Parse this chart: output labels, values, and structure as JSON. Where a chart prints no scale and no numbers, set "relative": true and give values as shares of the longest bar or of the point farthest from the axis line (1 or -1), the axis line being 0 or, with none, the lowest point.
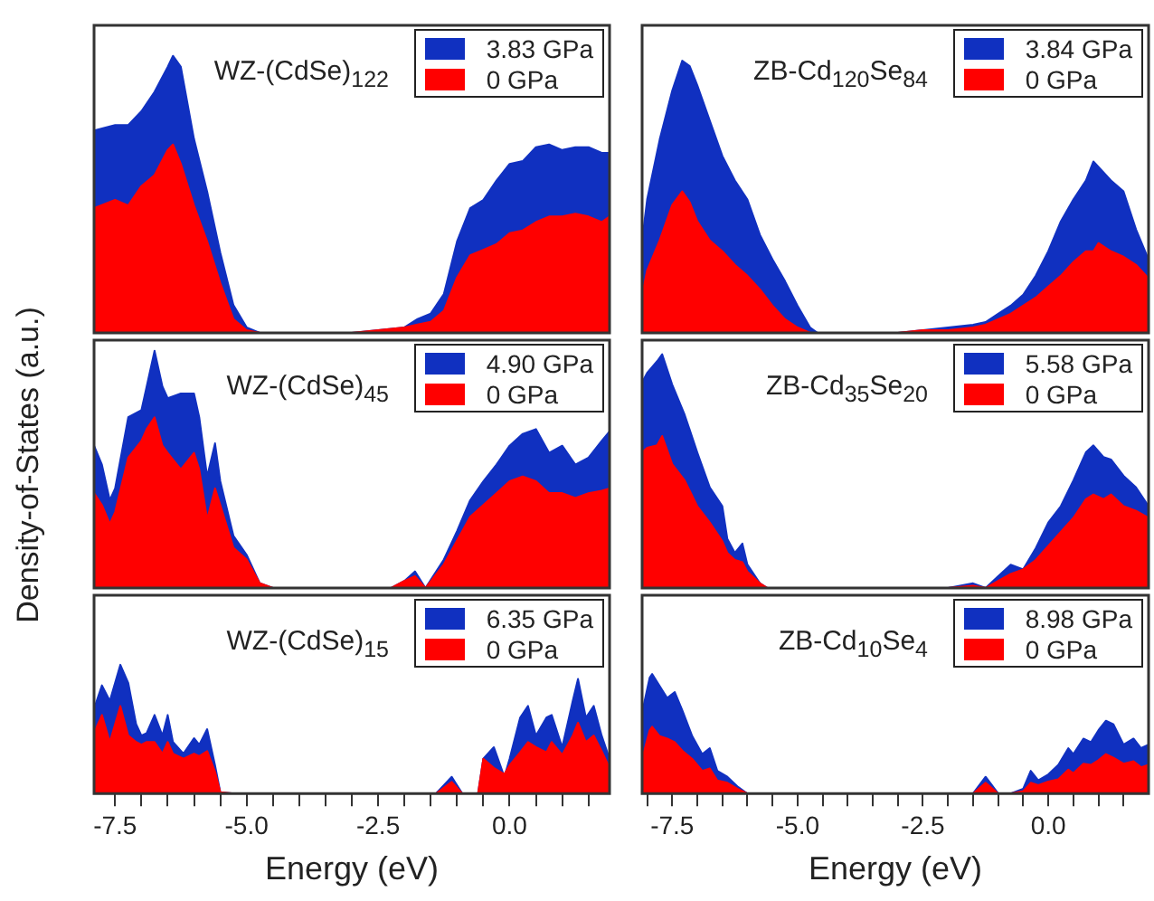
{
  "chart_data": [
    {
      "type": "area",
      "title": "WZ-(CdSe)$_{122}$",
      "relative": true,
      "legend": "top right",
      "marker": "none",
      "tick_labels": false,
      "xlim": [
        -7.9,
        1.9
      ],
      "x": [
        -7.9,
        -7.5,
        -7.25,
        -7,
        -6.75,
        -6.5,
        -6.4,
        -6.25,
        -6,
        -5.75,
        -5.5,
        -5.25,
        -5,
        -4.75,
        -4,
        -3,
        -2.5,
        -2,
        -1.75,
        -1.5,
        -1.25,
        -1,
        -0.75,
        -0.5,
        -0.25,
        0,
        0.25,
        0.5,
        0.75,
        1,
        1.25,
        1.5,
        1.75,
        1.9
      ],
      "series": [
        {
          "name": "3.83 GPa",
          "color": "#1030c0",
          "values": [
            0.73,
            0.75,
            0.75,
            0.8,
            0.87,
            0.96,
            1,
            0.96,
            0.7,
            0.51,
            0.29,
            0.1,
            0.02,
            0,
            0,
            0,
            0.01,
            0.02,
            0.05,
            0.07,
            0.14,
            0.33,
            0.45,
            0.48,
            0.55,
            0.61,
            0.62,
            0.67,
            0.68,
            0.66,
            0.67,
            0.67,
            0.65,
            0.65
          ]
        },
        {
          "name": "0 GPa",
          "color": "#ff0000",
          "values": [
            0.45,
            0.48,
            0.46,
            0.53,
            0.57,
            0.66,
            0.68,
            0.61,
            0.46,
            0.33,
            0.18,
            0.05,
            0.01,
            0,
            0,
            0,
            0.01,
            0.02,
            0.03,
            0.04,
            0.08,
            0.2,
            0.28,
            0.3,
            0.32,
            0.36,
            0.37,
            0.4,
            0.42,
            0.42,
            0.43,
            0.42,
            0.4,
            0.42
          ]
        }
      ]
    },
    {
      "type": "area",
      "title": "ZB-Cd$_{120}$Se$_{84}$",
      "relative": true,
      "legend": "top right",
      "marker": "none",
      "tick_labels": false,
      "xlim": [
        -8.1,
        2
      ],
      "x": [
        -8.1,
        -8,
        -7.75,
        -7.5,
        -7.3,
        -7.15,
        -7,
        -6.75,
        -6.5,
        -6.25,
        -6,
        -5.75,
        -5.5,
        -5.25,
        -5,
        -4.75,
        -4.6,
        -3,
        -2.5,
        -2,
        -1.5,
        -1.25,
        -1,
        -0.75,
        -0.5,
        -0.25,
        0,
        0.25,
        0.5,
        0.75,
        0.9,
        1,
        1.25,
        1.5,
        1.75,
        2
      ],
      "series": [
        {
          "name": "3.84 GPa",
          "color": "#1030c0",
          "values": [
            0.34,
            0.49,
            0.71,
            0.89,
            1,
            0.98,
            0.91,
            0.78,
            0.65,
            0.56,
            0.49,
            0.36,
            0.27,
            0.19,
            0.1,
            0.02,
            0,
            0,
            0.01,
            0.02,
            0.03,
            0.04,
            0.07,
            0.1,
            0.14,
            0.21,
            0.3,
            0.41,
            0.49,
            0.56,
            0.63,
            0.61,
            0.56,
            0.52,
            0.38,
            0.27
          ]
        },
        {
          "name": "0 GPa",
          "color": "#ff0000",
          "values": [
            0.14,
            0.23,
            0.34,
            0.47,
            0.52,
            0.48,
            0.41,
            0.34,
            0.3,
            0.25,
            0.21,
            0.16,
            0.1,
            0.05,
            0.02,
            0,
            0,
            0,
            0.01,
            0.01,
            0.02,
            0.03,
            0.05,
            0.07,
            0.1,
            0.13,
            0.17,
            0.21,
            0.26,
            0.3,
            0.3,
            0.33,
            0.3,
            0.28,
            0.25,
            0.2
          ]
        }
      ]
    },
    {
      "type": "area",
      "title": "WZ-(CdSe)$_{45}$",
      "ylabel": "Density-of-States (a.u.)",
      "relative": true,
      "legend": "top right",
      "marker": "none",
      "tick_labels": false,
      "xlim": [
        -7.9,
        1.9
      ],
      "x": [
        -7.9,
        -7.75,
        -7.6,
        -7.5,
        -7.25,
        -7,
        -6.9,
        -6.75,
        -6.6,
        -6.5,
        -6.25,
        -6,
        -5.9,
        -5.75,
        -5.6,
        -5.5,
        -5.25,
        -5,
        -4.75,
        -4.5,
        -3,
        -2.25,
        -2,
        -1.8,
        -1.6,
        -1.25,
        -1,
        -0.75,
        -0.5,
        -0.25,
        0,
        0.25,
        0.5,
        0.75,
        1,
        1.25,
        1.5,
        1.75,
        1.9
      ],
      "series": [
        {
          "name": "4.90 GPa",
          "color": "#1030c0",
          "values": [
            0.6,
            0.52,
            0.37,
            0.42,
            0.72,
            0.75,
            0.85,
            1,
            0.85,
            0.8,
            0.82,
            0.82,
            0.72,
            0.47,
            0.61,
            0.45,
            0.22,
            0.14,
            0.02,
            0,
            0,
            0,
            0.03,
            0.07,
            0,
            0.12,
            0.24,
            0.37,
            0.45,
            0.52,
            0.6,
            0.65,
            0.67,
            0.57,
            0.6,
            0.52,
            0.55,
            0.62,
            0.66
          ]
        },
        {
          "name": "0 GPa",
          "color": "#ff0000",
          "values": [
            0.4,
            0.35,
            0.27,
            0.32,
            0.55,
            0.62,
            0.67,
            0.72,
            0.6,
            0.57,
            0.5,
            0.57,
            0.5,
            0.29,
            0.42,
            0.35,
            0.17,
            0.12,
            0.02,
            0,
            0,
            0,
            0.03,
            0.05,
            0,
            0.1,
            0.2,
            0.3,
            0.35,
            0.4,
            0.45,
            0.47,
            0.45,
            0.4,
            0.4,
            0.38,
            0.4,
            0.41,
            0.42
          ]
        }
      ]
    },
    {
      "type": "area",
      "title": "ZB-Cd$_{35}$Se$_{20}$",
      "relative": true,
      "legend": "top right",
      "marker": "none",
      "tick_labels": false,
      "xlim": [
        -8.1,
        2
      ],
      "x": [
        -8.1,
        -8,
        -7.8,
        -7.7,
        -7.5,
        -7.25,
        -7,
        -6.75,
        -6.5,
        -6.4,
        -6.25,
        -6.1,
        -6,
        -5.75,
        -5.6,
        -2,
        -1.5,
        -1.25,
        -1,
        -0.75,
        -0.5,
        -0.25,
        0,
        0.25,
        0.5,
        0.75,
        0.9,
        1.1,
        1.25,
        1.5,
        1.75,
        2
      ],
      "series": [
        {
          "name": "5.58 GPa",
          "color": "#1030c0",
          "values": [
            0.88,
            0.92,
            0.97,
            1,
            0.87,
            0.74,
            0.58,
            0.43,
            0.35,
            0.21,
            0.15,
            0.19,
            0.1,
            0.02,
            0,
            0,
            0.02,
            0,
            0.05,
            0.1,
            0.08,
            0.17,
            0.28,
            0.35,
            0.46,
            0.58,
            0.61,
            0.56,
            0.55,
            0.48,
            0.43,
            0.35
          ]
        },
        {
          "name": "0 GPa",
          "color": "#ff0000",
          "values": [
            0.58,
            0.6,
            0.61,
            0.65,
            0.53,
            0.46,
            0.35,
            0.28,
            0.2,
            0.15,
            0.12,
            0.11,
            0.07,
            0.02,
            0,
            0,
            0.01,
            0,
            0.03,
            0.06,
            0.08,
            0.12,
            0.18,
            0.24,
            0.3,
            0.38,
            0.4,
            0.38,
            0.4,
            0.35,
            0.33,
            0.3
          ]
        }
      ]
    },
    {
      "type": "area",
      "title": "WZ-(CdSe)$_{15}$",
      "xlabel": "Energy (eV)",
      "relative": true,
      "legend": "top right",
      "marker": "none",
      "tick_labels": "x",
      "xlim": [
        -7.9,
        1.9
      ],
      "xticks": [
        {
          "value": -7.5,
          "label": "-7.5"
        },
        {
          "value": -7,
          "label": null
        },
        {
          "value": -6.5,
          "label": null
        },
        {
          "value": -6,
          "label": null
        },
        {
          "value": -5.5,
          "label": null
        },
        {
          "value": -5,
          "label": "-5.0"
        },
        {
          "value": -4.5,
          "label": null
        },
        {
          "value": -4,
          "label": null
        },
        {
          "value": -3.5,
          "label": null
        },
        {
          "value": -3,
          "label": null
        },
        {
          "value": -2.5,
          "label": "-2.5"
        },
        {
          "value": -2,
          "label": null
        },
        {
          "value": -1.5,
          "label": null
        },
        {
          "value": -1,
          "label": null
        },
        {
          "value": -0.5,
          "label": null
        },
        {
          "value": 0,
          "label": "0.0"
        },
        {
          "value": 0.5,
          "label": null
        },
        {
          "value": 1,
          "label": null
        },
        {
          "value": 1.5,
          "label": null
        }
      ],
      "x": [
        -7.9,
        -7.75,
        -7.6,
        -7.4,
        -7.25,
        -7.1,
        -7,
        -6.9,
        -6.75,
        -6.6,
        -6.5,
        -6.4,
        -6.2,
        -6,
        -5.9,
        -5.75,
        -5.6,
        -5.5,
        -5.25,
        -1.4,
        -1.1,
        -0.9,
        -0.6,
        -0.5,
        -0.3,
        -0.1,
        0,
        0.2,
        0.35,
        0.5,
        0.7,
        0.8,
        1,
        1.2,
        1.3,
        1.45,
        1.6,
        1.75,
        1.9
      ],
      "series": [
        {
          "name": "6.35 GPa",
          "color": "#1030c0",
          "values": [
            0.66,
            0.84,
            0.72,
            1,
            0.86,
            0.54,
            0.45,
            0.47,
            0.61,
            0.45,
            0.61,
            0.4,
            0.31,
            0.43,
            0.38,
            0.5,
            0.22,
            0.01,
            0,
            0,
            0.13,
            0,
            0,
            0.27,
            0.36,
            0.13,
            0.27,
            0.59,
            0.68,
            0.45,
            0.59,
            0.61,
            0.36,
            0.72,
            0.89,
            0.59,
            0.68,
            0.45,
            0.27
          ]
        },
        {
          "name": "0 GPa",
          "color": "#ff0000",
          "values": [
            0.47,
            0.61,
            0.4,
            0.68,
            0.45,
            0.4,
            0.38,
            0.4,
            0.4,
            0.31,
            0.4,
            0.31,
            0.27,
            0.31,
            0.29,
            0.33,
            0.17,
            0.01,
            0,
            0,
            0.09,
            0,
            0,
            0.27,
            0.2,
            0.15,
            0.22,
            0.32,
            0.4,
            0.36,
            0.32,
            0.4,
            0.3,
            0.45,
            0.55,
            0.4,
            0.45,
            0.33,
            0.2
          ]
        }
      ]
    },
    {
      "type": "area",
      "title": "ZB-Cd$_{10}$Se$_{4}$",
      "xlabel": "Energy (eV)",
      "relative": true,
      "legend": "top right",
      "marker": "none",
      "tick_labels": "x",
      "xlim": [
        -8.1,
        2
      ],
      "xticks": [
        {
          "value": -8,
          "label": null
        },
        {
          "value": -7.5,
          "label": "-7.5"
        },
        {
          "value": -7,
          "label": null
        },
        {
          "value": -6.5,
          "label": null
        },
        {
          "value": -6,
          "label": null
        },
        {
          "value": -5.5,
          "label": null
        },
        {
          "value": -5,
          "label": "-5.0"
        },
        {
          "value": -4.5,
          "label": null
        },
        {
          "value": -4,
          "label": null
        },
        {
          "value": -3.5,
          "label": null
        },
        {
          "value": -3,
          "label": null
        },
        {
          "value": -2.5,
          "label": "-2.5"
        },
        {
          "value": -2,
          "label": null
        },
        {
          "value": -1.5,
          "label": null
        },
        {
          "value": -1,
          "label": null
        },
        {
          "value": -0.5,
          "label": null
        },
        {
          "value": 0,
          "label": "0.0"
        },
        {
          "value": 0.5,
          "label": null
        },
        {
          "value": 1,
          "label": null
        },
        {
          "value": 1.5,
          "label": null
        }
      ],
      "x": [
        -8.1,
        -7.95,
        -7.9,
        -7.75,
        -7.6,
        -7.45,
        -7.3,
        -7.1,
        -6.9,
        -6.75,
        -6.6,
        -6.4,
        -6.2,
        -6,
        -1.5,
        -1.25,
        -1,
        -0.75,
        -0.5,
        -0.35,
        -0.2,
        0,
        0.2,
        0.4,
        0.5,
        0.7,
        0.85,
        1,
        1.15,
        1.3,
        1.5,
        1.7,
        1.85,
        2
      ],
      "series": [
        {
          "name": "8.98 GPa",
          "color": "#1030c0",
          "values": [
            0.68,
            0.97,
            1,
            0.9,
            0.8,
            0.85,
            0.7,
            0.48,
            0.33,
            0.38,
            0.19,
            0.14,
            0.06,
            0,
            0,
            0.14,
            0,
            0,
            0.04,
            0.19,
            0.11,
            0.16,
            0.24,
            0.38,
            0.33,
            0.46,
            0.43,
            0.53,
            0.61,
            0.58,
            0.41,
            0.46,
            0.38,
            0.41
          ]
        },
        {
          "name": "0 GPa",
          "color": "#ff0000",
          "values": [
            0.29,
            0.53,
            0.56,
            0.48,
            0.46,
            0.43,
            0.36,
            0.29,
            0.19,
            0.21,
            0.11,
            0.09,
            0.04,
            0,
            0,
            0.09,
            0,
            0,
            0.02,
            0.09,
            0.07,
            0.1,
            0.12,
            0.2,
            0.17,
            0.25,
            0.24,
            0.28,
            0.33,
            0.3,
            0.25,
            0.27,
            0.22,
            0.24
          ]
        }
      ]
    }
  ]
}
